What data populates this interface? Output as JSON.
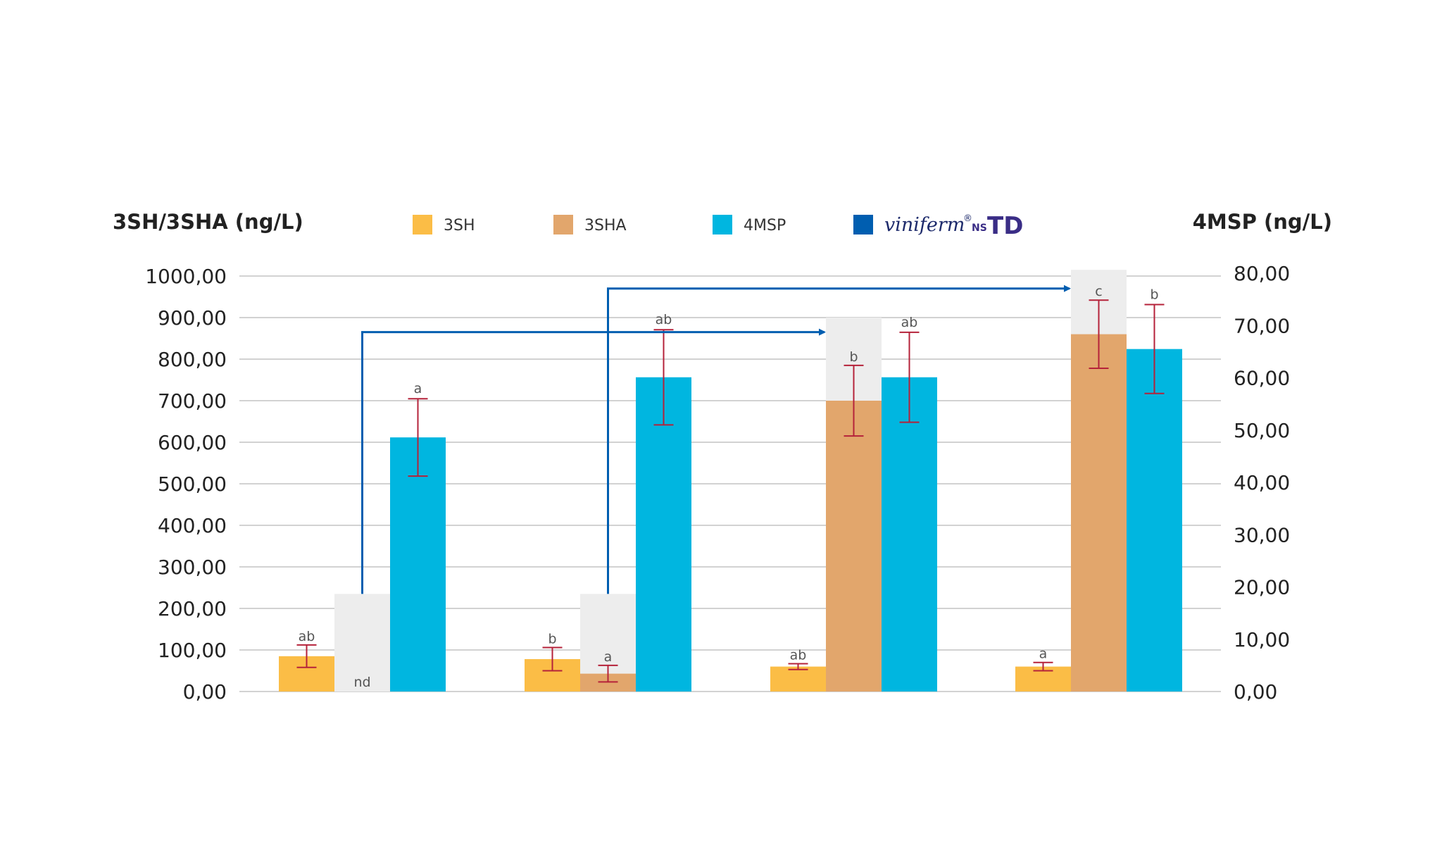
{
  "chart_data": {
    "type": "bar",
    "y_left_label": "3SH/3SHA (ng/L)",
    "y_right_label": "4MSP (ng/L)",
    "y_left_ticks": [
      "0,00",
      "100,00",
      "200,00",
      "300,00",
      "400,00",
      "500,00",
      "600,00",
      "700,00",
      "800,00",
      "900,00",
      "1000,00"
    ],
    "y_right_ticks": [
      "0,00",
      "10,00",
      "20,00",
      "30,00",
      "40,00",
      "50,00",
      "60,00",
      "70,00",
      "80,00"
    ],
    "ylim_left": [
      0,
      1000
    ],
    "ylim_right": [
      0,
      80
    ],
    "legend": [
      {
        "name": "3SH",
        "color": "#fbbd46"
      },
      {
        "name": "3SHA",
        "color": "#e2a66c"
      },
      {
        "name": "4MSP",
        "color": "#00b6e0"
      },
      {
        "name": "viniferm",
        "color": "#005eb0",
        "brand_sup": "®",
        "brand_ns": "NS",
        "brand_td": "TD"
      }
    ],
    "groups": [
      {
        "sh3": {
          "value": 85,
          "err": 27,
          "label": "ab"
        },
        "sha3": {
          "value": 0,
          "err": 0,
          "label": "nd",
          "max": 235
        },
        "msp4": {
          "value": 48.6,
          "err": 7.4,
          "label": "a"
        }
      },
      {
        "sh3": {
          "value": 78,
          "err": 28,
          "label": "b"
        },
        "sha3": {
          "value": 43,
          "err": 20,
          "label": "a",
          "max": 235
        },
        "msp4": {
          "value": 60.1,
          "err": 9.1,
          "label": "ab"
        }
      },
      {
        "sh3": {
          "value": 60,
          "err": 7,
          "label": "ab"
        },
        "sha3": {
          "value": 700,
          "err": 85,
          "label": "b",
          "max": 900
        },
        "msp4": {
          "value": 60.1,
          "err": 8.6,
          "label": "ab"
        }
      },
      {
        "sh3": {
          "value": 60,
          "err": 10,
          "label": "a"
        },
        "sha3": {
          "value": 860,
          "err": 82,
          "label": "c",
          "max": 1015
        },
        "msp4": {
          "value": 65.5,
          "err": 8.5,
          "label": "b"
        }
      }
    ],
    "arrows": [
      {
        "from_group": 0,
        "to_group": 2,
        "level": 865
      },
      {
        "from_group": 1,
        "to_group": 3,
        "level": 970
      }
    ]
  }
}
